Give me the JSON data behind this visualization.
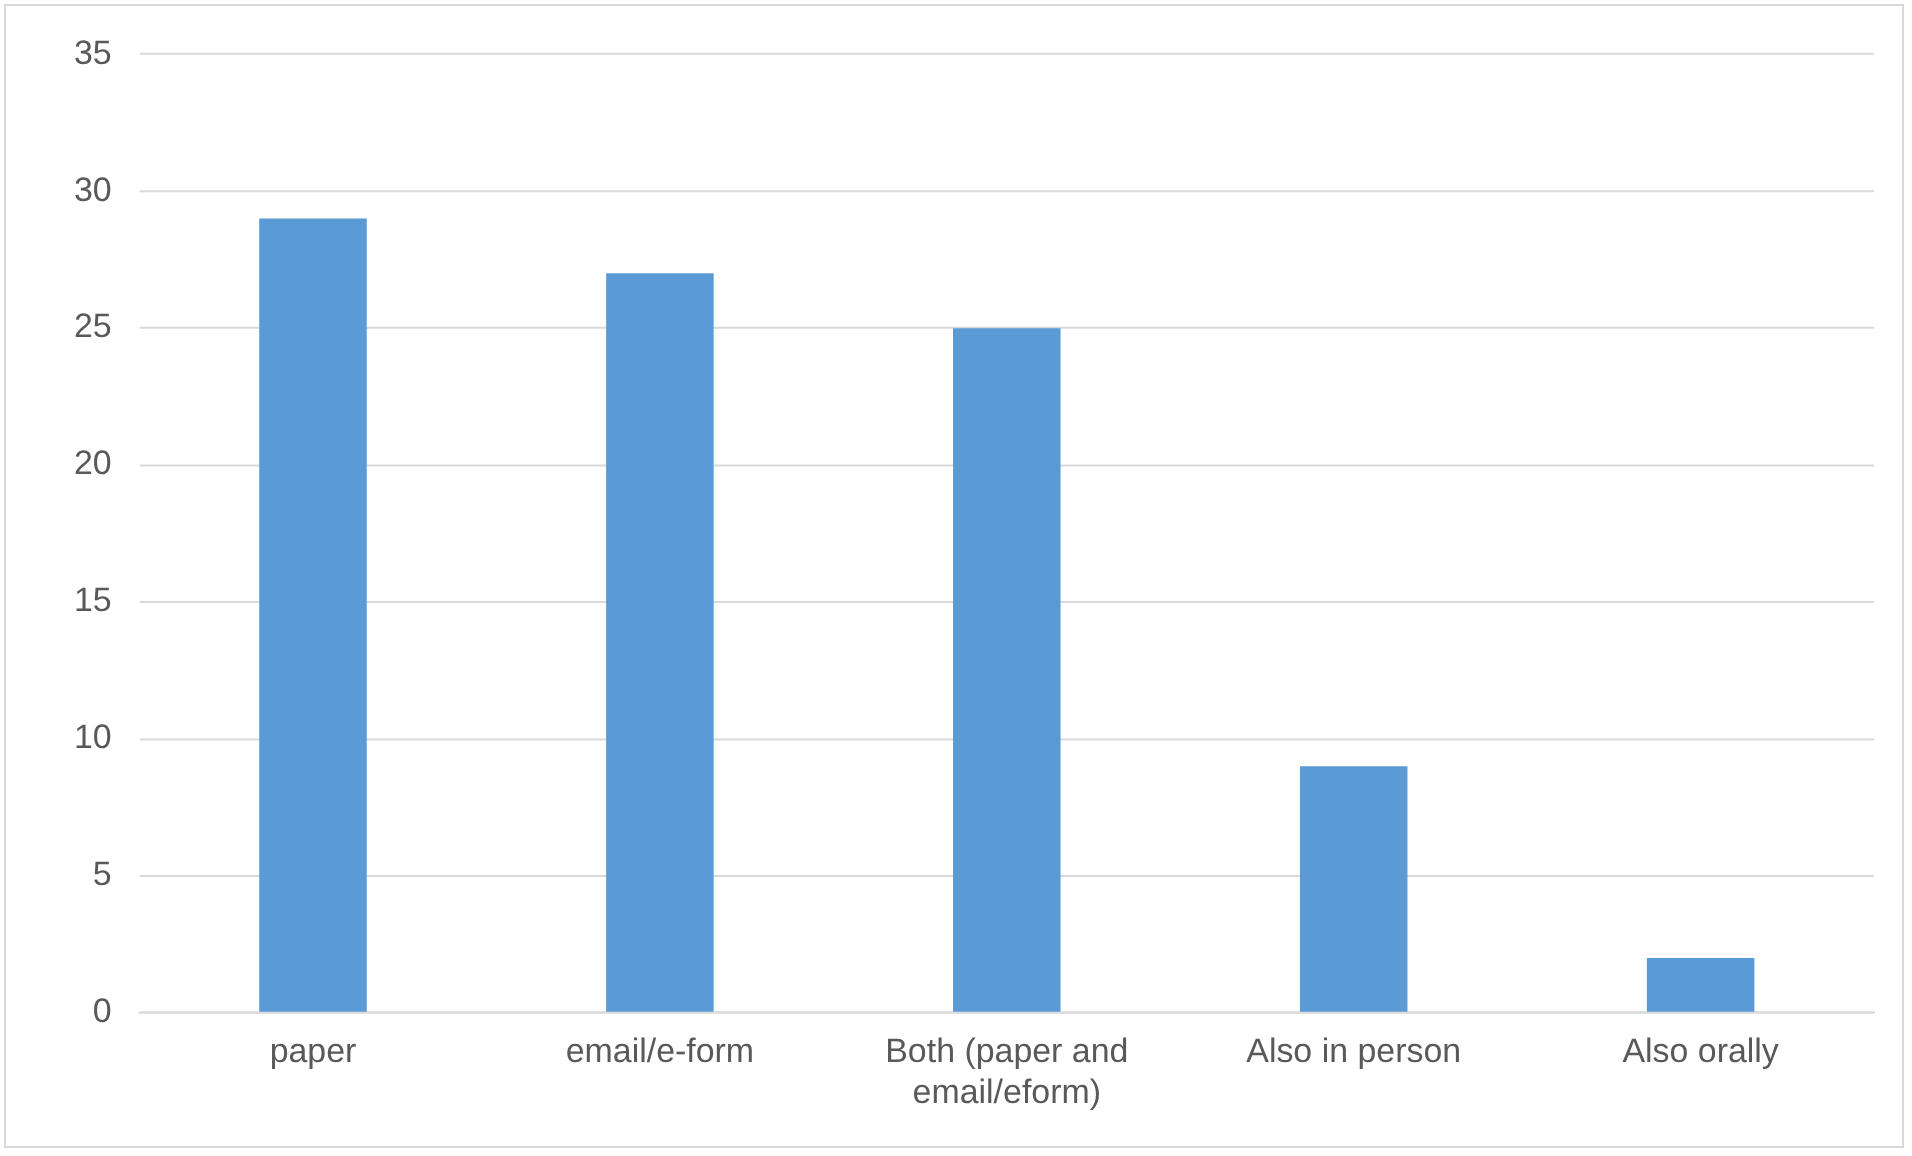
{
  "chart_data": {
    "type": "bar",
    "categories": [
      "paper",
      "email/e-form",
      "Both (paper and email/eform)",
      "Also in person",
      "Also orally"
    ],
    "values": [
      29,
      27,
      25,
      9,
      2
    ],
    "color": "#5b9bd5",
    "ylim": [
      0,
      35
    ],
    "yticks": [
      0,
      5,
      10,
      15,
      20,
      25,
      30,
      35
    ],
    "grid": "y",
    "legend": false
  }
}
